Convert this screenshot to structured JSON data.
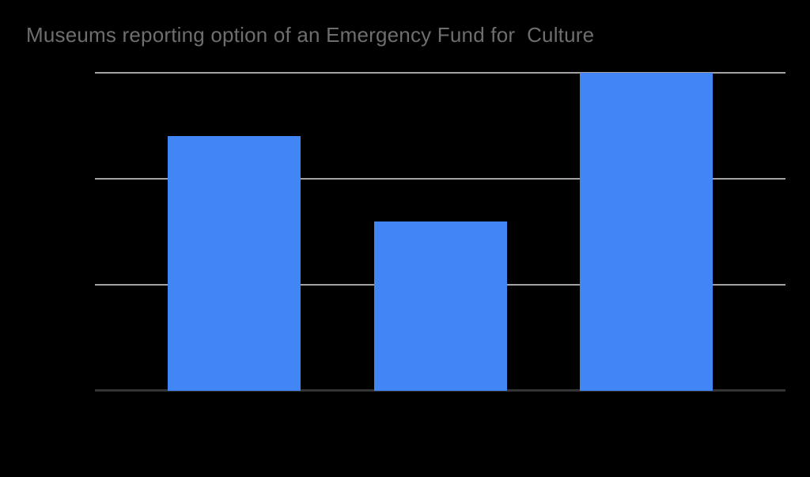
{
  "title": {
    "text": "Museums reporting option of an Emergency Fund for  Culture",
    "color": "#6e6e6e"
  },
  "colors": {
    "background": "#000000",
    "bar": "#4285f4",
    "gridline": "#a3a3a3",
    "baseline": "#333333",
    "title_text": "#6e6e6e"
  },
  "chart_data": {
    "type": "bar",
    "title": "Museums reporting option of an Emergency Fund for  Culture",
    "categories": [
      "",
      "",
      ""
    ],
    "values": [
      2.4,
      1.6,
      3.0
    ],
    "xlabel": "",
    "ylabel": "",
    "ylim": [
      0,
      3
    ],
    "gridline_values": [
      0,
      1,
      2,
      3
    ],
    "axis_tick_labels_visible": false,
    "grid": true,
    "legend_position": "none",
    "bar_color": "#4285f4",
    "notes_layout": "single series, black background, no visible axis tick labels; bottom baseline darker than upper gridlines"
  }
}
